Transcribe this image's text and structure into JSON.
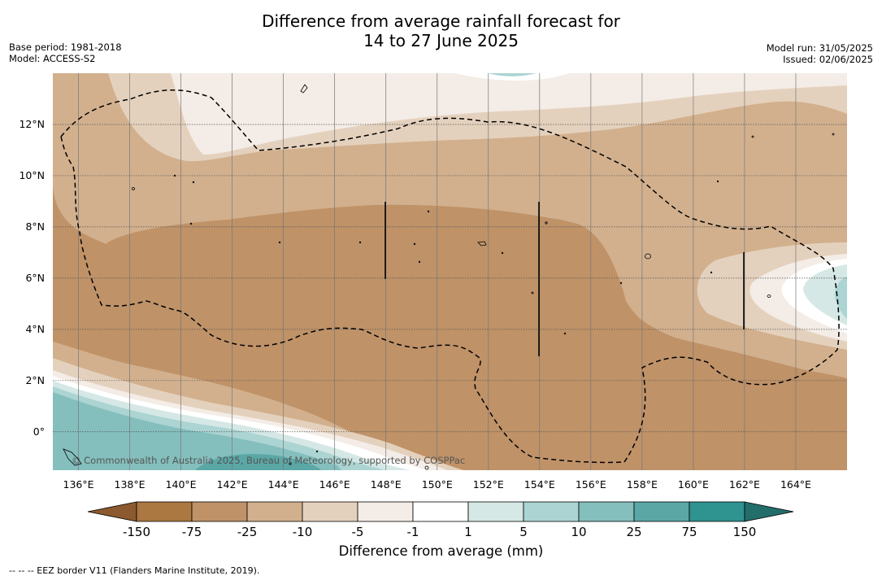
{
  "header": {
    "title_line1": "Difference from average rainfall forecast for",
    "title_line2": "14 to 27 June 2025",
    "base_period": "Base period: 1981-2018",
    "model": "Model: ACCESS-S2",
    "model_run": "Model run: 31/05/2025",
    "issued": "Issued: 02/06/2025"
  },
  "map": {
    "lon_range": [
      135,
      166
    ],
    "lat_range": [
      -1.5,
      14
    ],
    "lon_ticks": [
      "136°E",
      "138°E",
      "140°E",
      "142°E",
      "144°E",
      "146°E",
      "148°E",
      "150°E",
      "152°E",
      "154°E",
      "156°E",
      "158°E",
      "160°E",
      "162°E",
      "164°E"
    ],
    "lat_ticks": [
      "12°N",
      "10°N",
      "8°N",
      "6°N",
      "4°N",
      "2°N",
      "0°"
    ],
    "credit": "© Commonwealth of Australia 2025, Bureau of Meteorology, supported by COSPPac"
  },
  "colorbar": {
    "labels": [
      "-150",
      "-75",
      "-25",
      "-10",
      "-5",
      "-1",
      "1",
      "5",
      "10",
      "25",
      "75",
      "150"
    ],
    "colors": [
      "#8c5a2e",
      "#ac7841",
      "#bf9268",
      "#d2b08d",
      "#e4d1bd",
      "#f4ece6",
      "#ffffff",
      "#d5e8e6",
      "#abd4d2",
      "#84bfbd",
      "#5aa7a6",
      "#2f9390",
      "#236e6b"
    ],
    "label": "Difference from average (mm)"
  },
  "footnote": "--  --  -- EEZ border V11 (Flanders Marine Institute, 2019)."
}
